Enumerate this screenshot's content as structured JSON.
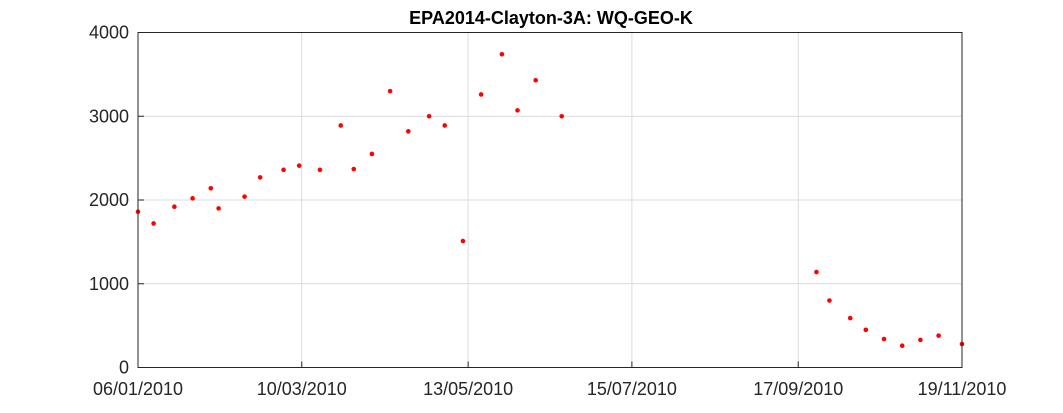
{
  "chart_data": {
    "type": "scatter",
    "title": "EPA2014-Clayton-3A: WQ-GEO-K",
    "xlabel": "",
    "ylabel": "",
    "x_axis_type": "date",
    "xlim": [
      "2010-01-06",
      "2010-11-19"
    ],
    "ylim": [
      0,
      4000
    ],
    "x_ticks": [
      "2010-01-06",
      "2010-03-10",
      "2010-05-13",
      "2010-07-15",
      "2010-09-17",
      "2010-11-19"
    ],
    "x_tick_labels": [
      "06/01/2010",
      "10/03/2010",
      "13/05/2010",
      "15/07/2010",
      "17/09/2010",
      "19/11/2010"
    ],
    "y_ticks": [
      0,
      1000,
      2000,
      3000,
      4000
    ],
    "y_tick_labels": [
      "0",
      "1000",
      "2000",
      "3000",
      "4000"
    ],
    "grid": true,
    "marker_color": "#ff0000",
    "series": [
      {
        "points": [
          {
            "x": "2010-01-06",
            "y": 1860
          },
          {
            "x": "2010-01-12",
            "y": 1720
          },
          {
            "x": "2010-01-20",
            "y": 1920
          },
          {
            "x": "2010-01-27",
            "y": 2020
          },
          {
            "x": "2010-02-03",
            "y": 2140
          },
          {
            "x": "2010-02-06",
            "y": 1900
          },
          {
            "x": "2010-02-16",
            "y": 2040
          },
          {
            "x": "2010-02-22",
            "y": 2270
          },
          {
            "x": "2010-03-03",
            "y": 2360
          },
          {
            "x": "2010-03-09",
            "y": 2410
          },
          {
            "x": "2010-03-17",
            "y": 2360
          },
          {
            "x": "2010-03-25",
            "y": 2890
          },
          {
            "x": "2010-03-30",
            "y": 2370
          },
          {
            "x": "2010-04-06",
            "y": 2550
          },
          {
            "x": "2010-04-13",
            "y": 3300
          },
          {
            "x": "2010-04-20",
            "y": 2820
          },
          {
            "x": "2010-04-28",
            "y": 3000
          },
          {
            "x": "2010-05-04",
            "y": 2890
          },
          {
            "x": "2010-05-11",
            "y": 1510
          },
          {
            "x": "2010-05-18",
            "y": 3260
          },
          {
            "x": "2010-05-26",
            "y": 3740
          },
          {
            "x": "2010-06-01",
            "y": 3070
          },
          {
            "x": "2010-06-08",
            "y": 3430
          },
          {
            "x": "2010-06-18",
            "y": 3000
          },
          {
            "x": "2010-09-24",
            "y": 1140
          },
          {
            "x": "2010-09-29",
            "y": 800
          },
          {
            "x": "2010-10-07",
            "y": 590
          },
          {
            "x": "2010-10-13",
            "y": 450
          },
          {
            "x": "2010-10-20",
            "y": 340
          },
          {
            "x": "2010-10-27",
            "y": 260
          },
          {
            "x": "2010-11-03",
            "y": 330
          },
          {
            "x": "2010-11-10",
            "y": 380
          },
          {
            "x": "2010-11-19",
            "y": 280
          }
        ]
      }
    ]
  }
}
